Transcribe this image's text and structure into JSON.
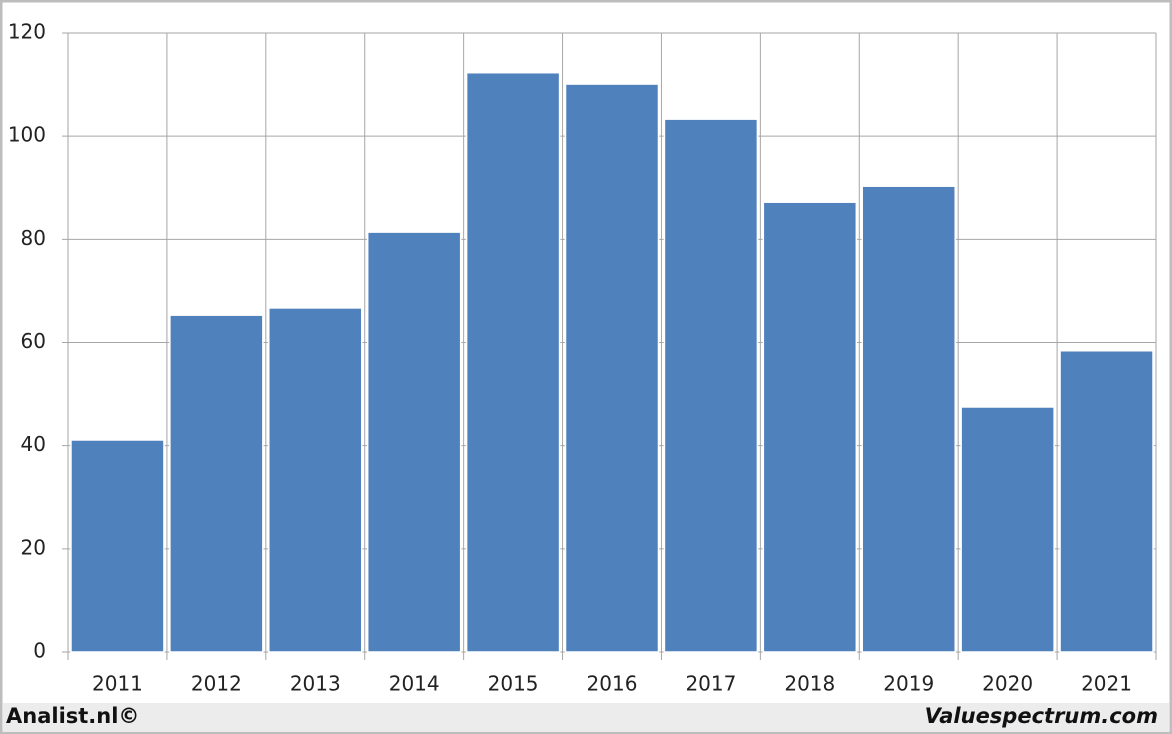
{
  "chart_data": {
    "type": "bar",
    "categories": [
      "2011",
      "2012",
      "2013",
      "2014",
      "2015",
      "2016",
      "2017",
      "2018",
      "2019",
      "2020",
      "2021"
    ],
    "values": [
      41.1,
      65.3,
      66.7,
      81.4,
      112.3,
      110.1,
      103.3,
      87.2,
      90.3,
      47.5,
      58.4
    ],
    "color": "#4f81bd",
    "ylim": [
      0,
      120
    ],
    "yticks": [
      0,
      20,
      40,
      60,
      80,
      100,
      120
    ],
    "grid": true
  },
  "footer": {
    "left": "Analist.nl©",
    "right": "Valuespectrum.com"
  }
}
